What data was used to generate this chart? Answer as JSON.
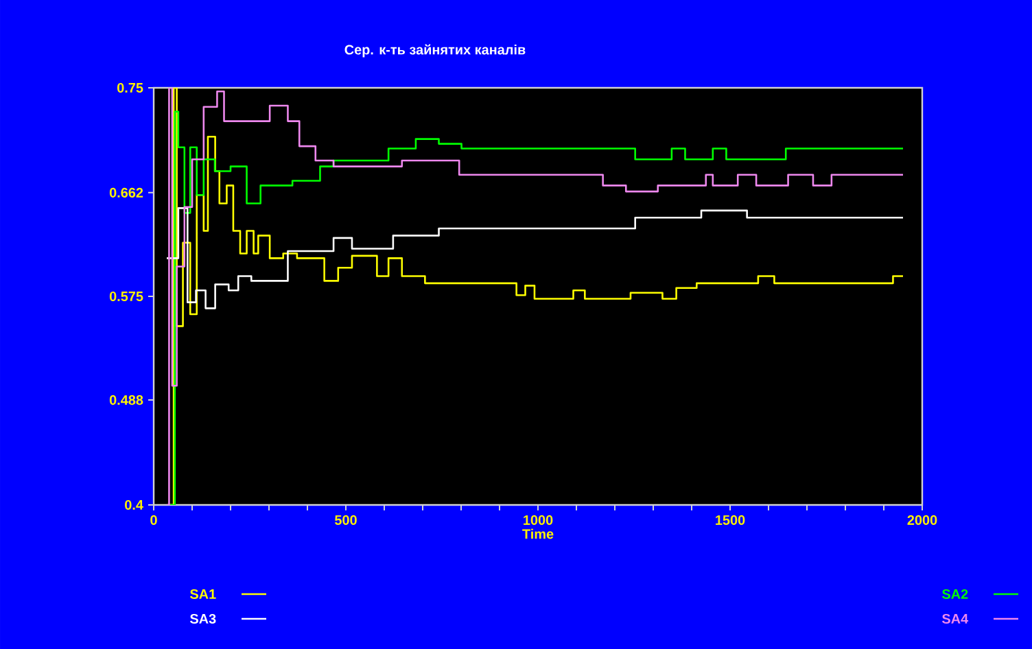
{
  "chart_data": {
    "type": "step",
    "title": "Сер. к-ть зайнятих каналів",
    "xlabel": "Time",
    "xlim": [
      0,
      2000
    ],
    "ylim": [
      0.4,
      0.75
    ],
    "xticks": [
      0,
      {
        "value": 100,
        "label": null
      },
      {
        "value": 200,
        "label": null
      },
      {
        "value": 300,
        "label": null
      },
      {
        "value": 400,
        "label": null
      },
      500,
      {
        "value": 600,
        "label": null
      },
      {
        "value": 700,
        "label": null
      },
      {
        "value": 800,
        "label": null
      },
      {
        "value": 900,
        "label": null
      },
      1000,
      {
        "value": 1100,
        "label": null
      },
      {
        "value": 1200,
        "label": null
      },
      {
        "value": 1300,
        "label": null
      },
      {
        "value": 1400,
        "label": null
      },
      1500,
      {
        "value": 1600,
        "label": null
      },
      {
        "value": 1700,
        "label": null
      },
      {
        "value": 1800,
        "label": null
      },
      {
        "value": 1900,
        "label": null
      },
      2000
    ],
    "yticks": [
      0.4,
      0.488,
      0.575,
      0.662,
      0.75
    ],
    "grid": false,
    "legend": "bottom",
    "line_style": "solid",
    "marker": "none",
    "series": [
      {
        "name": "SA1",
        "color": "#ffff00",
        "x": [
          40,
          52,
          60,
          76,
          95,
          112,
          130,
          141,
          160,
          171,
          190,
          207,
          225,
          242,
          260,
          272,
          302,
          337,
          373,
          444,
          480,
          516,
          581,
          611,
          646,
          706,
          944,
          967,
          991,
          1092,
          1122,
          1241,
          1324,
          1360,
          1413,
          1573,
          1615,
          1924,
          1950
        ],
        "values": [
          0.4,
          0.75,
          0.55,
          0.62,
          0.56,
          0.66,
          0.63,
          0.709,
          0.68,
          0.653,
          0.668,
          0.63,
          0.611,
          0.63,
          0.611,
          0.626,
          0.607,
          0.611,
          0.607,
          0.588,
          0.599,
          0.609,
          0.592,
          0.607,
          0.592,
          0.586,
          0.576,
          0.584,
          0.573,
          0.58,
          0.573,
          0.578,
          0.573,
          0.582,
          0.586,
          0.592,
          0.586,
          0.592,
          0.592
        ]
      },
      {
        "name": "SA2",
        "color": "#00ff00",
        "x": [
          40,
          55,
          64,
          80,
          95,
          112,
          130,
          159,
          200,
          242,
          278,
          361,
          433,
          468,
          611,
          682,
          742,
          801,
          1253,
          1348,
          1383,
          1455,
          1490,
          1645,
          1950
        ],
        "values": [
          0.4,
          0.73,
          0.7,
          0.645,
          0.7,
          0.66,
          0.69,
          0.68,
          0.684,
          0.653,
          0.668,
          0.672,
          0.684,
          0.689,
          0.699,
          0.707,
          0.703,
          0.699,
          0.69,
          0.699,
          0.69,
          0.699,
          0.69,
          0.699,
          0.699
        ]
      },
      {
        "name": "SA3",
        "color": "#ffffff",
        "x": [
          34,
          64,
          88,
          110,
          135,
          160,
          195,
          220,
          254,
          349,
          468,
          516,
          623,
          742,
          1253,
          1425,
          1544,
          1950
        ],
        "values": [
          0.607,
          0.649,
          0.57,
          0.58,
          0.565,
          0.585,
          0.58,
          0.592,
          0.588,
          0.613,
          0.624,
          0.615,
          0.626,
          0.632,
          0.641,
          0.647,
          0.641,
          0.641
        ]
      },
      {
        "name": "SA4",
        "color": "#ee88ee",
        "x": [
          34,
          40,
          48,
          60,
          80,
          100,
          130,
          165,
          183,
          302,
          349,
          379,
          421,
          468,
          646,
          795,
          1169,
          1229,
          1312,
          1437,
          1455,
          1520,
          1568,
          1651,
          1716,
          1764,
          1950
        ],
        "values": [
          0.4,
          0.75,
          0.5,
          0.6,
          0.65,
          0.69,
          0.734,
          0.747,
          0.722,
          0.735,
          0.722,
          0.701,
          0.689,
          0.684,
          0.689,
          0.677,
          0.668,
          0.663,
          0.668,
          0.677,
          0.668,
          0.677,
          0.668,
          0.677,
          0.668,
          0.677,
          0.677
        ]
      }
    ]
  }
}
